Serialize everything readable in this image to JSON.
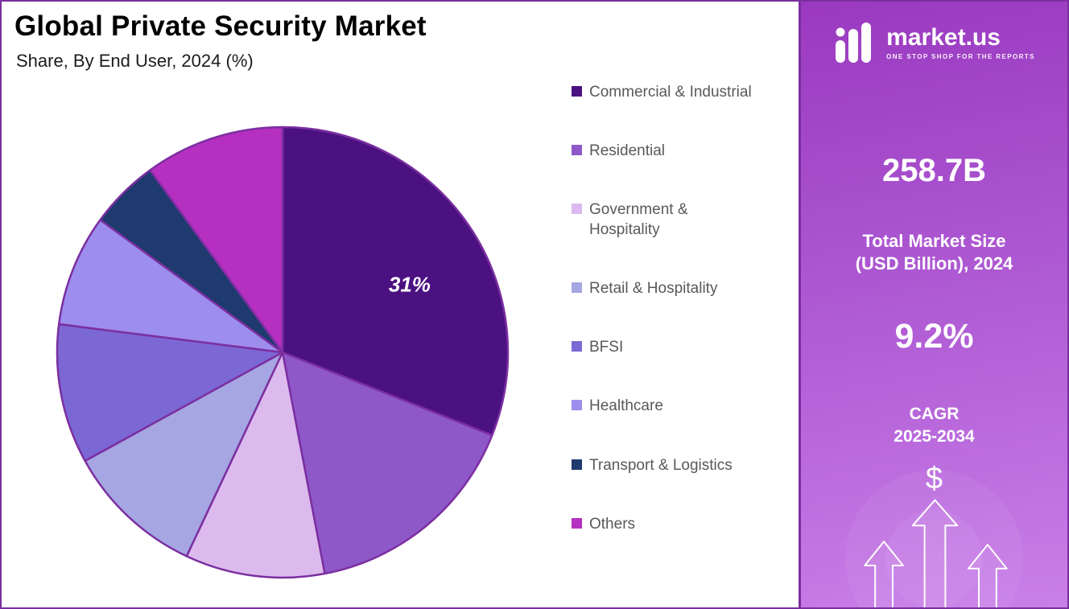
{
  "header": {
    "title": "Global Private Security Market",
    "subtitle": "Share, By End User, 2024 (%)"
  },
  "panel": {
    "logo_text": "market.us",
    "logo_tagline": "ONE STOP SHOP FOR THE REPORTS",
    "market_size_value": "258.7B",
    "market_size_label_line1": "Total Market Size",
    "market_size_label_line2": "(USD Billion), 2024",
    "cagr_value": "9.2%",
    "cagr_label_line1": "CAGR",
    "cagr_label_line2": "2025-2034",
    "dollar_symbol": "$",
    "accent_border_color": "#7b2fa0",
    "gradient_top_color": "#9a39c0",
    "gradient_bottom_color": "#c97fe8"
  },
  "chart_data": {
    "type": "pie",
    "title": "Global Private Security Market",
    "subtitle": "Share, By End User, 2024 (%)",
    "unit": "%",
    "categories": [
      "Commercial & Industrial",
      "Residential",
      "Government & Hospitality",
      "Retail & Hospitality",
      "BFSI",
      "Healthcare",
      "Transport & Logistics",
      "Others"
    ],
    "legend_labels": [
      "Commercial & Industrial",
      "Residential",
      "Government &\nHospitality",
      "Retail & Hospitality",
      "BFSI",
      "Healthcare",
      "Transport & Logistics",
      "Others"
    ],
    "values": [
      31,
      16,
      10,
      10,
      10,
      8,
      5,
      10
    ],
    "colors": [
      "#4b1181",
      "#8e58c9",
      "#dcbaee",
      "#a5a6e2",
      "#7c68d5",
      "#9d8ded",
      "#1e3a6e",
      "#b52fc0"
    ],
    "stroke_color": "#7b2fa0",
    "start_angle_deg": 0,
    "direction": "clockwise",
    "labeled_slice": {
      "index": 0,
      "text": "31%"
    },
    "legend_position": "right"
  }
}
